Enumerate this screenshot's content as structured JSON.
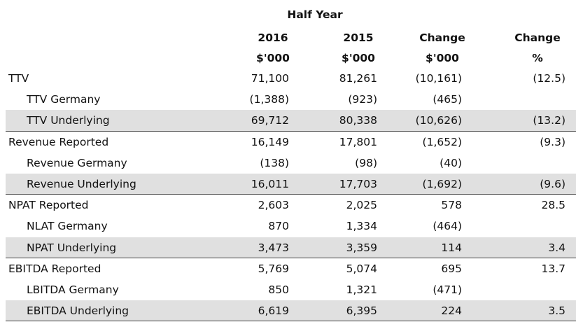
{
  "header": {
    "period": "Half Year",
    "columns": [
      {
        "line1": "2016",
        "line2": "$'000"
      },
      {
        "line1": "2015",
        "line2": "$'000"
      },
      {
        "line1": "Change",
        "line2": "$'000"
      },
      {
        "line1": "Change",
        "line2": "%"
      }
    ]
  },
  "rows": [
    {
      "label": "TTV",
      "v2016": "71,100",
      "v2015": "81,261",
      "change": "(10,161)",
      "pct": "(12.5)"
    },
    {
      "label": "TTV Germany",
      "v2016": "(1,388)",
      "v2015": "(923)",
      "change": "(465)",
      "pct": ""
    },
    {
      "label": "TTV Underlying",
      "v2016": "69,712",
      "v2015": "80,338",
      "change": "(10,626)",
      "pct": "(13.2)"
    },
    {
      "label": "Revenue Reported",
      "v2016": "16,149",
      "v2015": "17,801",
      "change": "(1,652)",
      "pct": "(9.3)"
    },
    {
      "label": "Revenue Germany",
      "v2016": "(138)",
      "v2015": "(98)",
      "change": "(40)",
      "pct": ""
    },
    {
      "label": "Revenue Underlying",
      "v2016": "16,011",
      "v2015": "17,703",
      "change": "(1,692)",
      "pct": "(9.6)"
    },
    {
      "label": "NPAT Reported",
      "v2016": "2,603",
      "v2015": "2,025",
      "change": "578",
      "pct": "28.5"
    },
    {
      "label": "NLAT Germany",
      "v2016": "870",
      "v2015": "1,334",
      "change": "(464)",
      "pct": ""
    },
    {
      "label": "NPAT Underlying",
      "v2016": "3,473",
      "v2015": "3,359",
      "change": "114",
      "pct": "3.4"
    },
    {
      "label": "EBITDA Reported",
      "v2016": "5,769",
      "v2015": "5,074",
      "change": "695",
      "pct": "13.7"
    },
    {
      "label": "LBITDA Germany",
      "v2016": "850",
      "v2015": "1,321",
      "change": "(471)",
      "pct": ""
    },
    {
      "label": "EBITDA Underlying",
      "v2016": "6,619",
      "v2015": "6,395",
      "change": "224",
      "pct": "3.5"
    }
  ]
}
